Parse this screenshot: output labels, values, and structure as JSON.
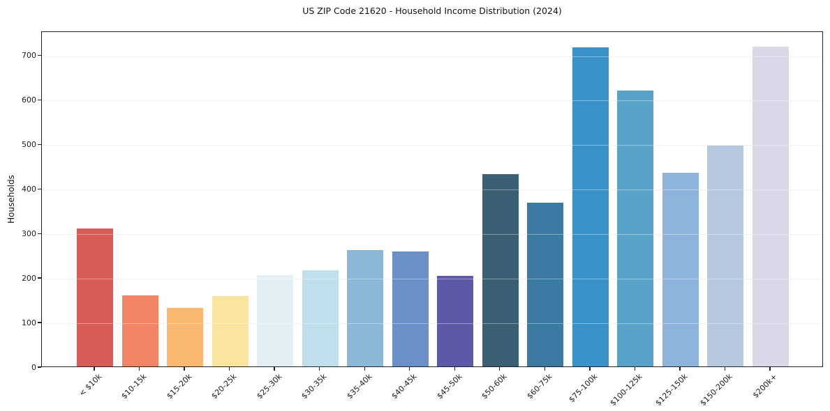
{
  "chart_data": {
    "type": "bar",
    "title": "US ZIP Code 21620 - Household Income Distribution (2024)",
    "xlabel": "",
    "ylabel": "Households",
    "categories": [
      "< $10k",
      "$10-15k",
      "$15-20k",
      "$20-25k",
      "$25-30k",
      "$30-35k",
      "$35-40k",
      "$40-45k",
      "$45-50k",
      "$50-60k",
      "$60-75k",
      "$75-100k",
      "$100-125k",
      "$125-150k",
      "$150-200k",
      "$200k+"
    ],
    "values": [
      310,
      160,
      131,
      158,
      205,
      216,
      261,
      258,
      204,
      432,
      368,
      716,
      620,
      435,
      496,
      718
    ],
    "bar_colors": [
      "#d75c55",
      "#f08465",
      "#fab873",
      "#fde49e",
      "#e2eff5",
      "#c0dfec",
      "#8bb7d8",
      "#6991c5",
      "#5c59a8",
      "#3b6073",
      "#3a7aa3",
      "#3b92c8",
      "#58a1c9",
      "#8db4da",
      "#b5c8e0",
      "#d8d8e8"
    ],
    "ylim": [
      0,
      754
    ],
    "yticks": [
      0,
      100,
      200,
      300,
      400,
      500,
      600,
      700
    ],
    "grid": true,
    "grid_color": "#e8e8e8",
    "legend_position": "none"
  }
}
